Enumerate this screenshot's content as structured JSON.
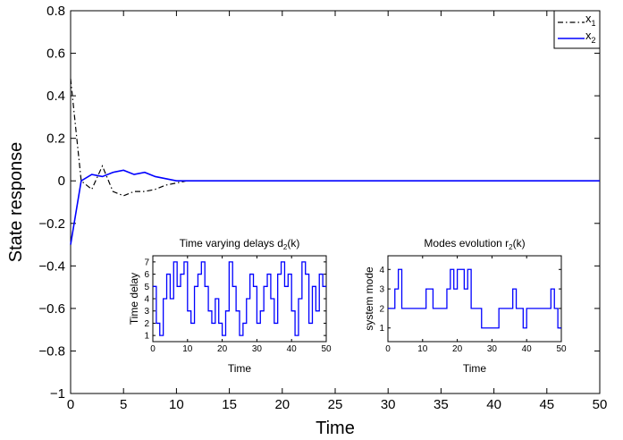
{
  "chart_data": [
    {
      "type": "line",
      "title": "",
      "xlabel": "Time",
      "ylabel": "State response",
      "xlim": [
        0,
        50
      ],
      "ylim": [
        -1,
        0.8
      ],
      "xticks": [
        0,
        5,
        10,
        15,
        20,
        25,
        30,
        35,
        40,
        45,
        50
      ],
      "yticks": [
        -1,
        -0.8,
        -0.6,
        -0.4,
        -0.2,
        0,
        0.2,
        0.4,
        0.6,
        0.8
      ],
      "ytick_labels": [
        "−1",
        "−0.8",
        "−0.6",
        "−0.4",
        "−0.2",
        "0",
        "0.2",
        "0.4",
        "0.6",
        "0.8"
      ],
      "grid": false,
      "legend": "top-right",
      "series": [
        {
          "name": "x1",
          "legend_base": "x",
          "legend_sub": "1",
          "color": "#000000",
          "style": "dashdot",
          "points": [
            [
              0,
              0.48
            ],
            [
              1,
              0.0
            ],
            [
              2,
              -0.04
            ],
            [
              3,
              0.07
            ],
            [
              4,
              -0.05
            ],
            [
              5,
              -0.07
            ],
            [
              6,
              -0.05
            ],
            [
              7,
              -0.05
            ],
            [
              8,
              -0.04
            ],
            [
              9,
              -0.02
            ],
            [
              10,
              -0.01
            ],
            [
              11,
              0.0
            ],
            [
              50,
              0.0
            ]
          ]
        },
        {
          "name": "x2",
          "legend_base": "x",
          "legend_sub": "2",
          "color": "#0000ff",
          "style": "solid",
          "points": [
            [
              0,
              -0.3
            ],
            [
              1,
              0.0
            ],
            [
              2,
              0.03
            ],
            [
              3,
              0.02
            ],
            [
              4,
              0.04
            ],
            [
              5,
              0.05
            ],
            [
              6,
              0.03
            ],
            [
              7,
              0.04
            ],
            [
              8,
              0.02
            ],
            [
              9,
              0.01
            ],
            [
              10,
              0.0
            ],
            [
              50,
              0.0
            ]
          ]
        }
      ]
    },
    {
      "type": "line",
      "step": true,
      "title_base": "Time varying delays d",
      "title_sub": "2",
      "title_tail": "(k)",
      "xlabel": "Time",
      "ylabel": "Time delay",
      "xlim": [
        0,
        50
      ],
      "ylim": [
        0.5,
        7.5
      ],
      "xticks": [
        0,
        10,
        20,
        30,
        40,
        50
      ],
      "yticks": [
        1,
        2,
        3,
        4,
        5,
        6,
        7
      ],
      "series": [
        {
          "color": "#0000ff",
          "values": [
            5,
            2,
            1,
            4,
            6,
            4,
            7,
            5,
            6,
            7,
            3,
            2,
            5,
            6,
            7,
            5,
            3,
            2,
            4,
            2,
            1,
            3,
            7,
            5,
            3,
            1,
            2,
            4,
            6,
            5,
            2,
            3,
            5,
            6,
            4,
            2,
            6,
            7,
            5,
            6,
            3,
            1,
            4,
            7,
            6,
            2,
            5,
            3,
            6,
            5
          ]
        }
      ]
    },
    {
      "type": "line",
      "step": true,
      "title_base": "Modes evolution r",
      "title_sub": "2",
      "title_tail": "(k)",
      "xlabel": "Time",
      "ylabel": "system mode",
      "xlim": [
        0,
        50
      ],
      "ylim": [
        0.3,
        4.7
      ],
      "xticks": [
        0,
        10,
        20,
        30,
        40,
        50
      ],
      "yticks": [
        1,
        2,
        3,
        4
      ],
      "series": [
        {
          "color": "#0000ff",
          "values": [
            2,
            2,
            3,
            4,
            2,
            2,
            2,
            2,
            2,
            2,
            2,
            3,
            3,
            2,
            2,
            2,
            2,
            3,
            4,
            3,
            4,
            4,
            3,
            4,
            2,
            2,
            2,
            1,
            1,
            1,
            1,
            1,
            2,
            2,
            2,
            2,
            3,
            2,
            2,
            1,
            2,
            2,
            2,
            2,
            2,
            2,
            2,
            3,
            2,
            1
          ]
        }
      ]
    }
  ]
}
